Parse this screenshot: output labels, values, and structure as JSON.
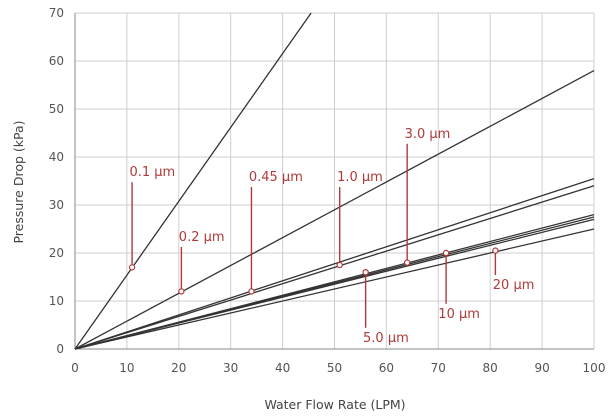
{
  "chart_data": {
    "type": "line",
    "title": "",
    "xlabel": "Water Flow Rate (LPM)",
    "ylabel": "Pressure Drop (kPa)",
    "xlim": [
      0,
      100
    ],
    "ylim": [
      0,
      70
    ],
    "xticks": [
      0,
      10,
      20,
      30,
      40,
      50,
      60,
      70,
      80,
      90,
      100
    ],
    "yticks": [
      0,
      10,
      20,
      30,
      40,
      50,
      60,
      70
    ],
    "grid": true,
    "line_color": "#333333",
    "label_color": "#b03a3a",
    "series": [
      {
        "name": "0.1 µm",
        "x": [
          0,
          45.5
        ],
        "y": [
          0,
          70.0
        ]
      },
      {
        "name": "0.2 µm",
        "x": [
          0,
          100
        ],
        "y": [
          0,
          58.0
        ]
      },
      {
        "name": "0.45 µm",
        "x": [
          0,
          100
        ],
        "y": [
          0,
          35.5
        ]
      },
      {
        "name": "1.0 µm",
        "x": [
          0,
          100
        ],
        "y": [
          0,
          34.0
        ]
      },
      {
        "name": "3.0 µm",
        "x": [
          0,
          100
        ],
        "y": [
          0,
          28.0
        ]
      },
      {
        "name": "5.0 µm",
        "x": [
          0,
          100
        ],
        "y": [
          0,
          27.5
        ]
      },
      {
        "name": "10 µm",
        "x": [
          0,
          100
        ],
        "y": [
          0,
          27.0
        ]
      },
      {
        "name": "20 µm",
        "x": [
          0,
          100
        ],
        "y": [
          0,
          25.0
        ]
      }
    ],
    "annotations": [
      {
        "text": "0.1 µm",
        "point": [
          11.0,
          17.0
        ],
        "label_at": [
          10.5,
          36.0
        ],
        "anchor": "start",
        "dir": "up"
      },
      {
        "text": "0.2 µm",
        "point": [
          20.5,
          12.0
        ],
        "label_at": [
          20.0,
          22.5
        ],
        "anchor": "start",
        "dir": "up"
      },
      {
        "text": "0.45 µm",
        "point": [
          34.0,
          12.0
        ],
        "label_at": [
          33.5,
          35.0
        ],
        "anchor": "start",
        "dir": "up"
      },
      {
        "text": "1.0 µm",
        "point": [
          51.0,
          17.5
        ],
        "label_at": [
          50.5,
          35.0
        ],
        "anchor": "start",
        "dir": "up"
      },
      {
        "text": "3.0 µm",
        "point": [
          64.0,
          18.0
        ],
        "label_at": [
          63.5,
          44.0
        ],
        "anchor": "start",
        "dir": "up"
      },
      {
        "text": "5.0 µm",
        "point": [
          56.0,
          16.0
        ],
        "label_at": [
          55.5,
          1.5
        ],
        "anchor": "start",
        "dir": "down"
      },
      {
        "text": "10 µm",
        "point": [
          71.5,
          20.0
        ],
        "label_at": [
          70.0,
          6.5
        ],
        "anchor": "start",
        "dir": "down"
      },
      {
        "text": "20 µm",
        "point": [
          81.0,
          20.5
        ],
        "label_at": [
          80.5,
          12.5
        ],
        "anchor": "start",
        "dir": "down"
      }
    ]
  }
}
